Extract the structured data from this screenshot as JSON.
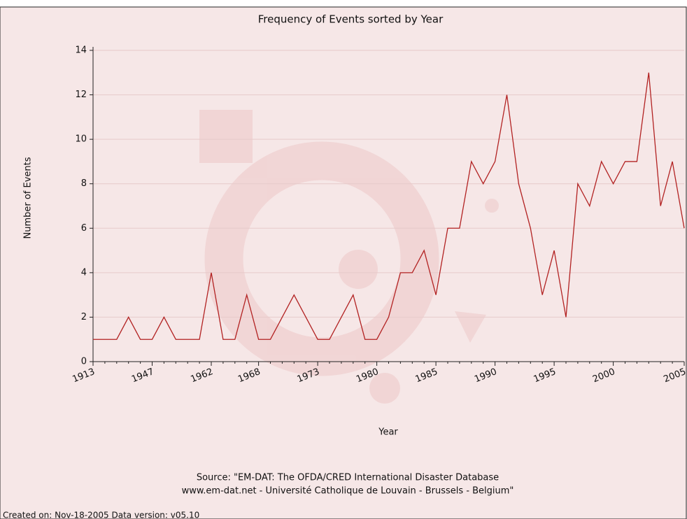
{
  "chart_data": {
    "type": "line",
    "title": "Frequency of Events sorted by Year",
    "x_label": "Year",
    "y_label": "Number of Events",
    "source": [
      "Source: \"EM-DAT: The OFDA/CRED International Disaster Database",
      "www.em-dat.net - Université Catholique de Louvain - Brussels - Belgium\""
    ],
    "footer": "Created on: Nov-18-2005  Data version: v05.10",
    "categories": [
      "1913",
      null,
      null,
      null,
      null,
      "1947",
      null,
      null,
      null,
      null,
      "1962",
      null,
      null,
      null,
      "1968",
      null,
      null,
      null,
      null,
      "1973",
      null,
      null,
      null,
      null,
      "1980",
      null,
      null,
      null,
      null,
      "1985",
      null,
      null,
      null,
      null,
      "1990",
      null,
      null,
      null,
      null,
      "1995",
      null,
      null,
      null,
      null,
      "2000",
      null,
      null,
      null,
      null,
      null,
      "2005"
    ],
    "series": [
      {
        "name": "Number of Events",
        "color": "#b22222",
        "values": [
          1,
          1,
          1,
          2,
          1,
          1,
          2,
          1,
          1,
          1,
          4,
          1,
          1,
          3,
          1,
          1,
          2,
          3,
          2,
          1,
          1,
          2,
          3,
          1,
          1,
          2,
          4,
          4,
          5,
          3,
          6,
          6,
          9,
          8,
          9,
          12,
          8,
          6,
          3,
          5,
          2,
          8,
          7,
          9,
          8,
          9,
          9,
          13,
          7,
          9,
          6
        ]
      }
    ],
    "ylim": [
      0,
      14
    ],
    "yticks": [
      0,
      2,
      4,
      6,
      8,
      10,
      12,
      14
    ],
    "grid": true
  }
}
